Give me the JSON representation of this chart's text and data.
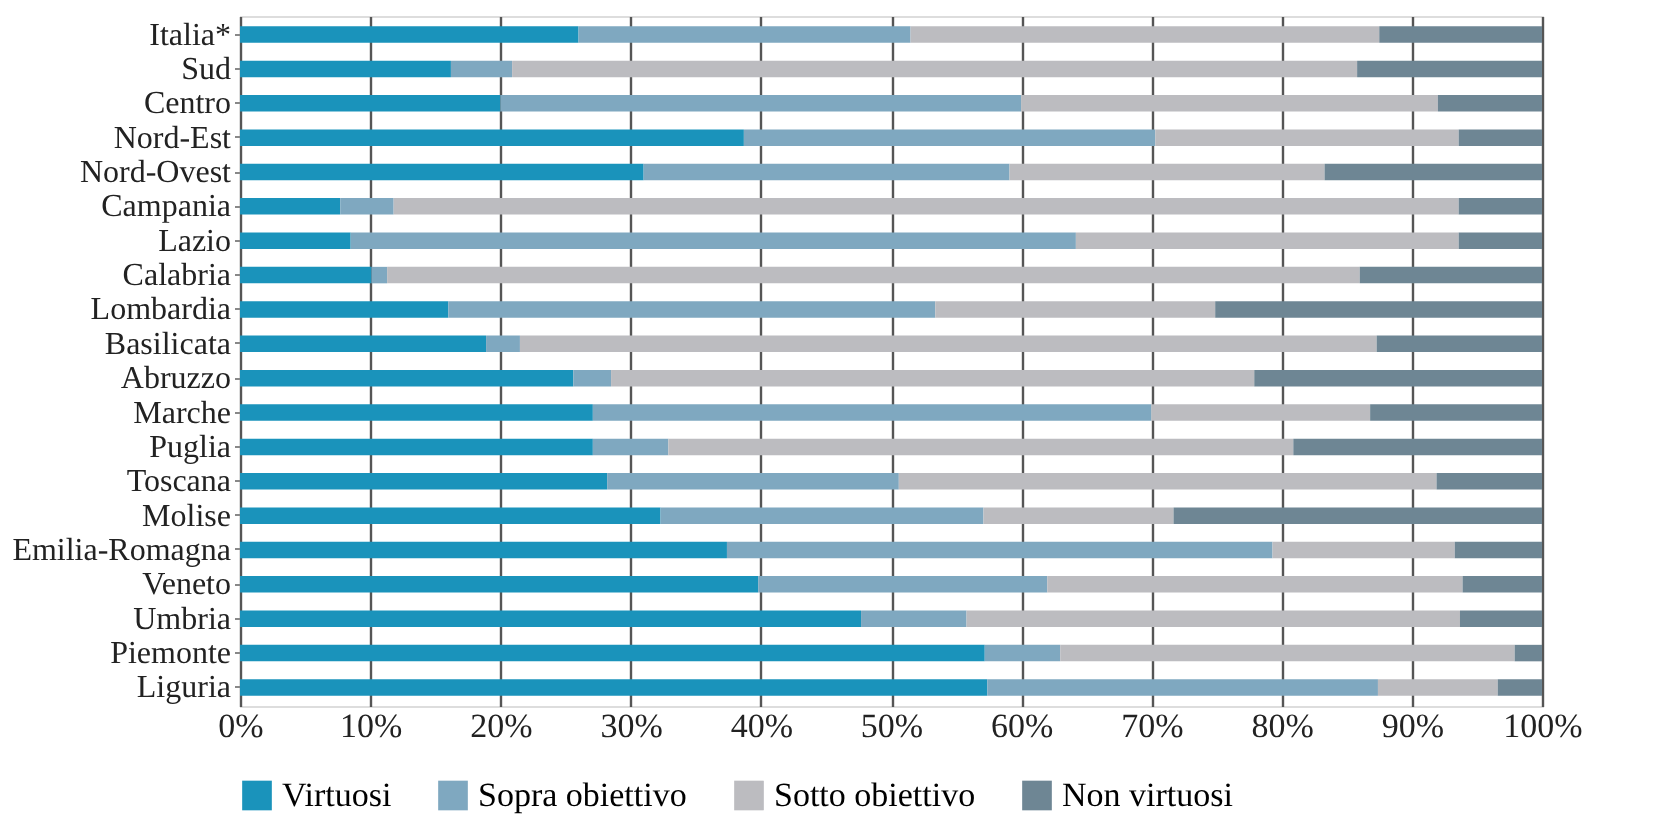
{
  "chart_data": {
    "type": "bar",
    "orientation": "horizontal",
    "stacked": true,
    "categories": [
      "Italia*",
      "Sud",
      "Centro",
      "Nord-Est",
      "Nord-Ovest",
      "Campania",
      "Lazio",
      "Calabria",
      "Lombardia",
      "Basilicata",
      "Abruzzo",
      "Marche",
      "Puglia",
      "Toscana",
      "Molise",
      "Emilia-Romagna",
      "Veneto",
      "Umbria",
      "Piemonte",
      "Liguria"
    ],
    "series": [
      {
        "name": "Virtuosi",
        "color": "#1a93bb",
        "values": [
          26,
          16.2,
          20,
          38.7,
          31,
          7.7,
          8.5,
          10.1,
          16,
          18.9,
          25.6,
          27.1,
          27.1,
          28.2,
          32.3,
          37.4,
          39.8,
          47.7,
          57.2,
          57.4
        ]
      },
      {
        "name": "Sopra obiettivo",
        "color": "#7fa8c0",
        "values": [
          25.5,
          4.7,
          40,
          31.6,
          28.1,
          4.1,
          55.7,
          1.2,
          37.4,
          2.6,
          2.9,
          42.9,
          5.8,
          22.4,
          24.8,
          41.9,
          22.2,
          8.1,
          5.8,
          30
        ]
      },
      {
        "name": "Sotto obiettivo",
        "color": "#bcbcc0",
        "values": [
          36,
          64.9,
          32,
          23.3,
          24.2,
          81.8,
          29.4,
          74.7,
          21.5,
          65.8,
          49.4,
          16.8,
          48,
          41.3,
          14.6,
          14,
          31.9,
          37.9,
          34.9,
          9.2
        ]
      },
      {
        "name": "Non virtuosi",
        "color": "#6e8694",
        "values": [
          12.5,
          14.2,
          8,
          6.4,
          16.7,
          6.4,
          6.4,
          14,
          25.1,
          12.7,
          22.1,
          13.2,
          19.1,
          8.1,
          28.3,
          6.7,
          6.1,
          6.3,
          2.1,
          3.4
        ]
      }
    ],
    "xlim": [
      0,
      100
    ],
    "xticks": [
      {
        "value": 0,
        "label": "0%"
      },
      {
        "value": 10,
        "label": "10%"
      },
      {
        "value": 20,
        "label": "20%"
      },
      {
        "value": 30,
        "label": "30%"
      },
      {
        "value": 40,
        "label": "40%"
      },
      {
        "value": 50,
        "label": "50%"
      },
      {
        "value": 60,
        "label": "60%"
      },
      {
        "value": 70,
        "label": "70%"
      },
      {
        "value": 80,
        "label": "80%"
      },
      {
        "value": 90,
        "label": "90%"
      },
      {
        "value": 100,
        "label": "100%"
      }
    ],
    "grid": "x",
    "legend": "bottom"
  }
}
